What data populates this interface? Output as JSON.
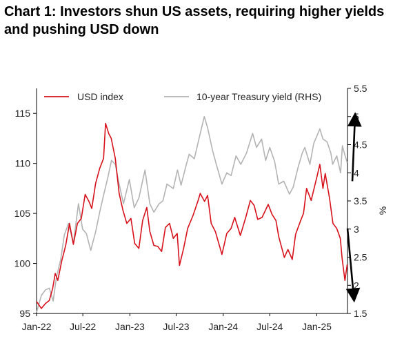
{
  "chart_data": {
    "type": "line",
    "title": "Chart 1: Investors shun US assets, requiring higher yields and pushing USD down",
    "x_tick_labels": [
      "Jan-22",
      "Jul-22",
      "Jan-23",
      "Jul-23",
      "Jan-24",
      "Jul-24",
      "Jan-25"
    ],
    "xlim": [
      "2022-01",
      "2025-05"
    ],
    "left_axis": {
      "ylim": [
        95,
        117.5
      ],
      "ticks": [
        95,
        100,
        105,
        110,
        115
      ]
    },
    "right_axis": {
      "label": "%",
      "ylim": [
        1.5,
        5.5
      ],
      "ticks": [
        "1.5",
        "2",
        "2.5",
        "3",
        "3.5",
        "4",
        "4.5",
        "5",
        "5.5"
      ]
    },
    "legend_position": "top",
    "grid": false,
    "series": [
      {
        "name": "USD index",
        "axis": "left",
        "color": "#d7101b",
        "points": [
          [
            "2022-01-01",
            96.2
          ],
          [
            "2022-01-20",
            95.5
          ],
          [
            "2022-02-05",
            96.0
          ],
          [
            "2022-02-20",
            96.3
          ],
          [
            "2022-03-05",
            97.5
          ],
          [
            "2022-03-15",
            99.0
          ],
          [
            "2022-03-25",
            98.3
          ],
          [
            "2022-04-10",
            100.3
          ],
          [
            "2022-04-25",
            101.8
          ],
          [
            "2022-05-10",
            104.0
          ],
          [
            "2022-05-25",
            101.9
          ],
          [
            "2022-06-10",
            104.0
          ],
          [
            "2022-06-25",
            104.5
          ],
          [
            "2022-07-10",
            106.9
          ],
          [
            "2022-07-25",
            106.2
          ],
          [
            "2022-08-05",
            105.5
          ],
          [
            "2022-08-20",
            108.0
          ],
          [
            "2022-09-05",
            109.5
          ],
          [
            "2022-09-20",
            110.5
          ],
          [
            "2022-09-28",
            114.0
          ],
          [
            "2022-10-10",
            113.0
          ],
          [
            "2022-10-20",
            112.5
          ],
          [
            "2022-11-05",
            110.5
          ],
          [
            "2022-11-20",
            107.0
          ],
          [
            "2022-12-05",
            105.3
          ],
          [
            "2022-12-20",
            104.0
          ],
          [
            "2023-01-05",
            104.5
          ],
          [
            "2023-01-20",
            102.0
          ],
          [
            "2023-02-05",
            101.5
          ],
          [
            "2023-02-20",
            104.3
          ],
          [
            "2023-03-08",
            105.6
          ],
          [
            "2023-03-20",
            103.2
          ],
          [
            "2023-04-05",
            101.8
          ],
          [
            "2023-04-20",
            101.7
          ],
          [
            "2023-05-05",
            101.2
          ],
          [
            "2023-05-20",
            103.6
          ],
          [
            "2023-06-05",
            104.0
          ],
          [
            "2023-06-20",
            102.5
          ],
          [
            "2023-07-05",
            103.0
          ],
          [
            "2023-07-14",
            99.8
          ],
          [
            "2023-07-30",
            101.5
          ],
          [
            "2023-08-15",
            103.5
          ],
          [
            "2023-09-05",
            104.8
          ],
          [
            "2023-09-25",
            106.3
          ],
          [
            "2023-10-03",
            107.0
          ],
          [
            "2023-10-20",
            106.2
          ],
          [
            "2023-11-01",
            106.8
          ],
          [
            "2023-11-15",
            104.0
          ],
          [
            "2023-12-01",
            103.2
          ],
          [
            "2023-12-27",
            100.9
          ],
          [
            "2024-01-15",
            103.0
          ],
          [
            "2024-02-01",
            103.5
          ],
          [
            "2024-02-15",
            104.6
          ],
          [
            "2024-03-08",
            102.8
          ],
          [
            "2024-03-28",
            104.5
          ],
          [
            "2024-04-16",
            106.3
          ],
          [
            "2024-05-01",
            105.8
          ],
          [
            "2024-05-15",
            104.4
          ],
          [
            "2024-06-01",
            104.6
          ],
          [
            "2024-06-25",
            105.9
          ],
          [
            "2024-07-10",
            104.9
          ],
          [
            "2024-07-25",
            104.3
          ],
          [
            "2024-08-05",
            102.7
          ],
          [
            "2024-08-27",
            100.6
          ],
          [
            "2024-09-10",
            101.4
          ],
          [
            "2024-09-27",
            100.4
          ],
          [
            "2024-10-10",
            102.9
          ],
          [
            "2024-10-30",
            104.3
          ],
          [
            "2024-11-10",
            105.0
          ],
          [
            "2024-11-22",
            107.5
          ],
          [
            "2024-12-10",
            106.3
          ],
          [
            "2024-12-31",
            108.5
          ],
          [
            "2025-01-13",
            109.9
          ],
          [
            "2025-01-25",
            107.5
          ],
          [
            "2025-02-03",
            109.0
          ],
          [
            "2025-02-20",
            106.5
          ],
          [
            "2025-03-05",
            104.0
          ],
          [
            "2025-03-20",
            103.5
          ],
          [
            "2025-04-03",
            102.5
          ],
          [
            "2025-04-10",
            100.5
          ],
          [
            "2025-04-21",
            98.3
          ],
          [
            "2025-04-30",
            99.9
          ]
        ]
      },
      {
        "name": "10-year Treasury yield (RHS)",
        "axis": "right",
        "color": "#b3b3b3",
        "points": [
          [
            "2022-01-01",
            1.52
          ],
          [
            "2022-01-20",
            1.82
          ],
          [
            "2022-02-05",
            1.92
          ],
          [
            "2022-02-20",
            1.95
          ],
          [
            "2022-03-07",
            1.72
          ],
          [
            "2022-03-20",
            2.15
          ],
          [
            "2022-04-05",
            2.45
          ],
          [
            "2022-04-20",
            2.9
          ],
          [
            "2022-05-06",
            3.1
          ],
          [
            "2022-05-25",
            2.75
          ],
          [
            "2022-06-14",
            3.45
          ],
          [
            "2022-06-30",
            3.0
          ],
          [
            "2022-07-15",
            2.92
          ],
          [
            "2022-08-01",
            2.62
          ],
          [
            "2022-08-20",
            2.95
          ],
          [
            "2022-09-05",
            3.3
          ],
          [
            "2022-09-20",
            3.6
          ],
          [
            "2022-10-06",
            3.9
          ],
          [
            "2022-10-21",
            4.22
          ],
          [
            "2022-11-05",
            4.15
          ],
          [
            "2022-11-20",
            3.8
          ],
          [
            "2022-12-07",
            3.45
          ],
          [
            "2022-12-30",
            3.88
          ],
          [
            "2023-01-18",
            3.38
          ],
          [
            "2023-02-05",
            3.55
          ],
          [
            "2023-03-01",
            4.05
          ],
          [
            "2023-03-20",
            3.45
          ],
          [
            "2023-04-05",
            3.3
          ],
          [
            "2023-04-25",
            3.45
          ],
          [
            "2023-05-10",
            3.5
          ],
          [
            "2023-05-26",
            3.8
          ],
          [
            "2023-06-20",
            3.72
          ],
          [
            "2023-07-06",
            4.05
          ],
          [
            "2023-07-20",
            3.78
          ],
          [
            "2023-08-10",
            4.15
          ],
          [
            "2023-08-21",
            4.33
          ],
          [
            "2023-09-10",
            4.25
          ],
          [
            "2023-09-28",
            4.6
          ],
          [
            "2023-10-19",
            5.0
          ],
          [
            "2023-11-01",
            4.8
          ],
          [
            "2023-11-20",
            4.4
          ],
          [
            "2023-12-05",
            4.15
          ],
          [
            "2023-12-27",
            3.8
          ],
          [
            "2024-01-15",
            4.0
          ],
          [
            "2024-02-01",
            3.95
          ],
          [
            "2024-02-20",
            4.3
          ],
          [
            "2024-03-10",
            4.15
          ],
          [
            "2024-04-01",
            4.35
          ],
          [
            "2024-04-25",
            4.7
          ],
          [
            "2024-05-10",
            4.45
          ],
          [
            "2024-05-30",
            4.6
          ],
          [
            "2024-06-15",
            4.22
          ],
          [
            "2024-07-01",
            4.45
          ],
          [
            "2024-07-20",
            4.2
          ],
          [
            "2024-08-05",
            3.8
          ],
          [
            "2024-08-25",
            3.85
          ],
          [
            "2024-09-16",
            3.62
          ],
          [
            "2024-10-01",
            3.75
          ],
          [
            "2024-10-20",
            4.1
          ],
          [
            "2024-11-05",
            4.35
          ],
          [
            "2024-11-15",
            4.45
          ],
          [
            "2024-12-05",
            4.15
          ],
          [
            "2024-12-20",
            4.52
          ],
          [
            "2025-01-13",
            4.78
          ],
          [
            "2025-01-25",
            4.6
          ],
          [
            "2025-02-10",
            4.55
          ],
          [
            "2025-02-25",
            4.35
          ],
          [
            "2025-03-04",
            4.15
          ],
          [
            "2025-03-20",
            4.3
          ],
          [
            "2025-04-04",
            4.0
          ],
          [
            "2025-04-11",
            4.48
          ],
          [
            "2025-04-20",
            4.33
          ],
          [
            "2025-04-30",
            4.18
          ]
        ]
      }
    ],
    "annotations": [
      {
        "type": "arrow",
        "direction": "up",
        "axis": "right",
        "from": [
          "2025-05-20",
          3.85
        ],
        "to": [
          "2025-05-30",
          4.95
        ]
      },
      {
        "type": "arrow",
        "direction": "down",
        "axis": "left",
        "from": [
          "2025-05-01",
          103.5
        ],
        "to": [
          "2025-05-25",
          96.8
        ]
      }
    ]
  }
}
